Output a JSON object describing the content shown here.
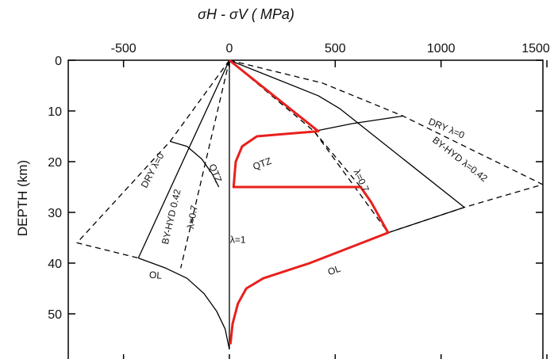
{
  "chart_data": {
    "type": "line",
    "title": "",
    "xlabel": "σH - σV ( MPa)",
    "ylabel": "DEPTH (km)",
    "x_axis_position": "top",
    "y_inverted": true,
    "xlim": [
      -800,
      1500
    ],
    "ylim": [
      0,
      58
    ],
    "xticks": [
      -500,
      0,
      500,
      1000,
      1500
    ],
    "yticks": [
      0,
      10,
      20,
      30,
      40,
      50
    ],
    "grid": false,
    "series": [
      {
        "id": "dry-tension",
        "style": "dashed",
        "color": "#000000",
        "points": [
          [
            0,
            0
          ],
          [
            -280,
            16
          ],
          [
            -720,
            36
          ],
          [
            -430,
            39
          ]
        ]
      },
      {
        "id": "byhyd-tension",
        "style": "solid",
        "color": "#000000",
        "points": [
          [
            0,
            0
          ],
          [
            -430,
            39
          ]
        ]
      },
      {
        "id": "lambda07-tension",
        "style": "dashed",
        "color": "#000000",
        "points": [
          [
            0,
            0
          ],
          [
            -230,
            41
          ]
        ]
      },
      {
        "id": "lambda1",
        "style": "solid",
        "color": "#000000",
        "points": [
          [
            0,
            0
          ],
          [
            0,
            57
          ]
        ]
      },
      {
        "id": "qtz-tension",
        "style": "solid",
        "color": "#000000",
        "points": [
          [
            -280,
            16
          ],
          [
            -200,
            17
          ],
          [
            -130,
            19.5
          ],
          [
            -80,
            22.5
          ],
          [
            -50,
            25
          ]
        ]
      },
      {
        "id": "ol-tension",
        "style": "solid",
        "color": "#000000",
        "points": [
          [
            -430,
            39
          ],
          [
            -300,
            41
          ],
          [
            -200,
            43
          ],
          [
            -120,
            46
          ],
          [
            -60,
            49.5
          ],
          [
            -20,
            53
          ],
          [
            0,
            57
          ]
        ]
      },
      {
        "id": "dry-compression",
        "style": "dashed",
        "color": "#000000",
        "points": [
          [
            0,
            0
          ],
          [
            440,
            4.5
          ],
          [
            820,
            11
          ],
          [
            1480,
            24.5
          ],
          [
            1110,
            29
          ],
          [
            750,
            34
          ],
          [
            400,
            14
          ],
          [
            0,
            0
          ]
        ]
      },
      {
        "id": "byhyd-compression",
        "style": "solid",
        "color": "#000000",
        "points": [
          [
            0,
            0
          ],
          [
            420,
            7
          ],
          [
            520,
            9.5
          ],
          [
            1110,
            29
          ]
        ]
      },
      {
        "id": "qtz-compression-black",
        "style": "solid",
        "color": "#000000",
        "points": [
          [
            400,
            14
          ],
          [
            580,
            12.5
          ],
          [
            820,
            11
          ]
        ]
      },
      {
        "id": "ol-compression-black",
        "style": "solid",
        "color": "#000000",
        "points": [
          [
            750,
            34
          ],
          [
            1110,
            29
          ]
        ]
      },
      {
        "id": "lambda07-compression",
        "style": "dashed",
        "color": "#000000",
        "points": [
          [
            400,
            14
          ],
          [
            620,
            25
          ]
        ]
      },
      {
        "id": "red-lambda07",
        "style": "solid",
        "color": "#e8201c",
        "width": 3,
        "points": [
          [
            0,
            0
          ],
          [
            420,
            14
          ],
          [
            130,
            15
          ],
          [
            60,
            17
          ],
          [
            30,
            20
          ],
          [
            20,
            25
          ],
          [
            620,
            25
          ],
          [
            670,
            28
          ],
          [
            750,
            34
          ],
          [
            380,
            40
          ],
          [
            160,
            43
          ],
          [
            80,
            45
          ],
          [
            40,
            48
          ],
          [
            15,
            52
          ],
          [
            5,
            56
          ]
        ]
      }
    ],
    "annotations": [
      {
        "text": "DRY  λ=0",
        "x": -350,
        "y": 22,
        "rotate": -62
      },
      {
        "text": "BY-HYD 0.42",
        "x": -260,
        "y": 31,
        "rotate": -77
      },
      {
        "text": "λ=0.7",
        "x": -160,
        "y": 31,
        "rotate": -80
      },
      {
        "text": "QTZ",
        "x": -80,
        "y": 22.5,
        "rotate": 68
      },
      {
        "text": "λ=1",
        "x": 40,
        "y": 36,
        "rotate": 0
      },
      {
        "text": "OL",
        "x": -350,
        "y": 43,
        "rotate": 5
      },
      {
        "text": "QTZ",
        "x": 160,
        "y": 21,
        "rotate": -20
      },
      {
        "text": "λ=0.7",
        "x": 610,
        "y": 24,
        "rotate": 65
      },
      {
        "text": "OL",
        "x": 500,
        "y": 42,
        "rotate": -20
      },
      {
        "text": "DRY  λ=0",
        "x": 1020,
        "y": 14,
        "rotate": 23
      },
      {
        "text": "BY-HYD  λ=0.42",
        "x": 1080,
        "y": 20,
        "rotate": 38
      }
    ]
  }
}
